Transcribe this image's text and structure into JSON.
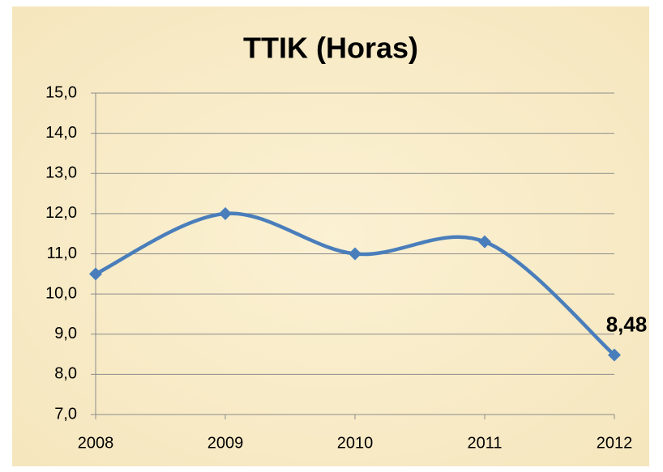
{
  "chart_data": {
    "type": "line",
    "title": "TTIK (Horas)",
    "categories": [
      "2008",
      "2009",
      "2010",
      "2011",
      "2012"
    ],
    "series": [
      {
        "name": "TTIK",
        "color": "#4a7ebb",
        "values": [
          10.5,
          12.0,
          11.0,
          11.3,
          8.48
        ],
        "value_labels": [
          null,
          null,
          null,
          null,
          "8,48"
        ]
      }
    ],
    "ylim": [
      7,
      15
    ],
    "yticks": [
      {
        "value": 7,
        "label": "7,0"
      },
      {
        "value": 8,
        "label": "8,0"
      },
      {
        "value": 9,
        "label": "9,0"
      },
      {
        "value": 10,
        "label": "10,0"
      },
      {
        "value": 11,
        "label": "11,0"
      },
      {
        "value": 12,
        "label": "12,0"
      },
      {
        "value": 13,
        "label": "13,0"
      },
      {
        "value": 14,
        "label": "14,0"
      },
      {
        "value": 15,
        "label": "15,0"
      }
    ],
    "grid": true,
    "smooth": true
  }
}
